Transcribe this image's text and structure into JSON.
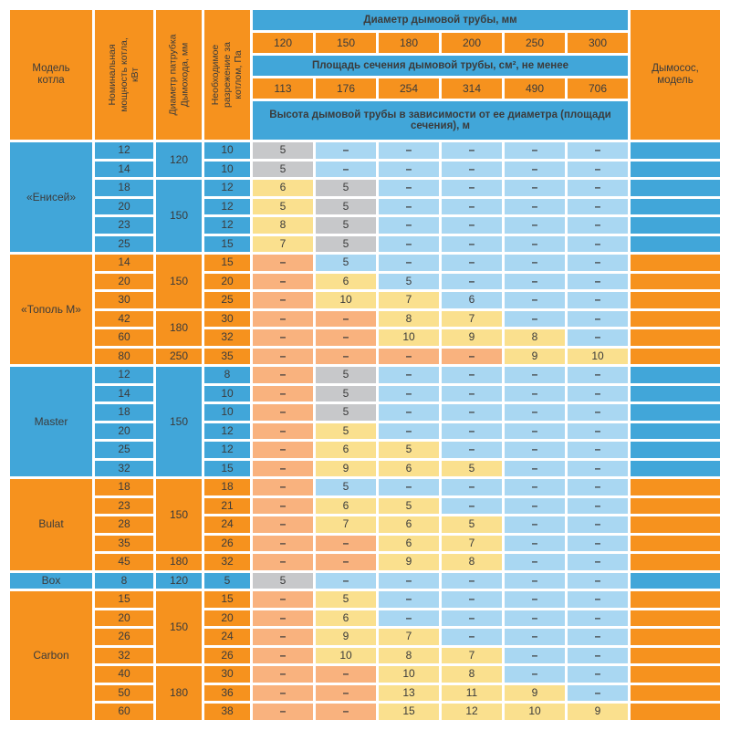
{
  "colors": {
    "orange": "#F6921E",
    "blue": "#41A6D9",
    "light_blue": "#A9D7F2",
    "salmon": "#F9B27E",
    "yellow": "#FAE08E",
    "gray": "#C7C8CA",
    "text": "#3B3B3B",
    "background": "#FFFFFF"
  },
  "chart_data": {
    "type": "table",
    "header": {
      "corner": "Модель котла",
      "rotated": [
        "Номинальная мощность котла, кВт",
        "Диаметр патрубка Дымохода, мм",
        "Необходимое разрежение за котлом, Па"
      ],
      "diameter_band": "Диаметр дымовой трубы, мм",
      "diameters": [
        "120",
        "150",
        "180",
        "200",
        "250",
        "300"
      ],
      "area_band": "Площадь сечения дымовой трубы, см², не менее",
      "areas": [
        "113",
        "176",
        "254",
        "314",
        "490",
        "706"
      ],
      "height_band": "Высота дымовой трубы в зависимости от ее диаметра (площади сечения), м",
      "exhauster": "Дымосос, модель"
    },
    "cell_color_legend": {
      "g": "gray",
      "y": "yellow",
      "b": "light_blue",
      "s": "salmon"
    },
    "sections": [
      {
        "model": "«Енисей»",
        "theme": "blue",
        "pipes": [
          {
            "value": "120",
            "span": 2
          },
          {
            "value": "150",
            "span": 4
          }
        ],
        "rows": [
          {
            "power": "12",
            "pa": "10",
            "heights": [
              [
                "5",
                "g"
              ],
              [
                "–",
                "b"
              ],
              [
                "–",
                "b"
              ],
              [
                "–",
                "b"
              ],
              [
                "–",
                "b"
              ],
              [
                "–",
                "b"
              ]
            ]
          },
          {
            "power": "14",
            "pa": "10",
            "heights": [
              [
                "5",
                "g"
              ],
              [
                "–",
                "b"
              ],
              [
                "–",
                "b"
              ],
              [
                "–",
                "b"
              ],
              [
                "–",
                "b"
              ],
              [
                "–",
                "b"
              ]
            ]
          },
          {
            "power": "18",
            "pa": "12",
            "heights": [
              [
                "6",
                "y"
              ],
              [
                "5",
                "g"
              ],
              [
                "–",
                "b"
              ],
              [
                "–",
                "b"
              ],
              [
                "–",
                "b"
              ],
              [
                "–",
                "b"
              ]
            ]
          },
          {
            "power": "20",
            "pa": "12",
            "heights": [
              [
                "5",
                "y"
              ],
              [
                "5",
                "g"
              ],
              [
                "–",
                "b"
              ],
              [
                "–",
                "b"
              ],
              [
                "–",
                "b"
              ],
              [
                "–",
                "b"
              ]
            ]
          },
          {
            "power": "23",
            "pa": "12",
            "heights": [
              [
                "8",
                "y"
              ],
              [
                "5",
                "g"
              ],
              [
                "–",
                "b"
              ],
              [
                "–",
                "b"
              ],
              [
                "–",
                "b"
              ],
              [
                "–",
                "b"
              ]
            ]
          },
          {
            "power": "25",
            "pa": "15",
            "heights": [
              [
                "7",
                "y"
              ],
              [
                "5",
                "g"
              ],
              [
                "–",
                "b"
              ],
              [
                "–",
                "b"
              ],
              [
                "–",
                "b"
              ],
              [
                "–",
                "b"
              ]
            ]
          }
        ]
      },
      {
        "model": "«Тополь М»",
        "theme": "orange",
        "pipes": [
          {
            "value": "150",
            "span": 3
          },
          {
            "value": "180",
            "span": 2
          },
          {
            "value": "250",
            "span": 1
          }
        ],
        "rows": [
          {
            "power": "14",
            "pa": "15",
            "heights": [
              [
                "–",
                "s"
              ],
              [
                "5",
                "b"
              ],
              [
                "–",
                "b"
              ],
              [
                "–",
                "b"
              ],
              [
                "–",
                "b"
              ],
              [
                "–",
                "b"
              ]
            ]
          },
          {
            "power": "20",
            "pa": "20",
            "heights": [
              [
                "–",
                "s"
              ],
              [
                "6",
                "y"
              ],
              [
                "5",
                "b"
              ],
              [
                "–",
                "b"
              ],
              [
                "–",
                "b"
              ],
              [
                "–",
                "b"
              ]
            ]
          },
          {
            "power": "30",
            "pa": "25",
            "heights": [
              [
                "–",
                "s"
              ],
              [
                "10",
                "y"
              ],
              [
                "7",
                "y"
              ],
              [
                "6",
                "b"
              ],
              [
                "–",
                "b"
              ],
              [
                "–",
                "b"
              ]
            ]
          },
          {
            "power": "42",
            "pa": "30",
            "heights": [
              [
                "–",
                "s"
              ],
              [
                "–",
                "s"
              ],
              [
                "8",
                "y"
              ],
              [
                "7",
                "y"
              ],
              [
                "–",
                "b"
              ],
              [
                "–",
                "b"
              ]
            ]
          },
          {
            "power": "60",
            "pa": "32",
            "heights": [
              [
                "–",
                "s"
              ],
              [
                "–",
                "s"
              ],
              [
                "10",
                "y"
              ],
              [
                "9",
                "y"
              ],
              [
                "8",
                "y"
              ],
              [
                "–",
                "b"
              ]
            ]
          },
          {
            "power": "80",
            "pa": "35",
            "heights": [
              [
                "–",
                "s"
              ],
              [
                "–",
                "s"
              ],
              [
                "–",
                "s"
              ],
              [
                "–",
                "s"
              ],
              [
                "9",
                "y"
              ],
              [
                "10",
                "y"
              ]
            ]
          }
        ]
      },
      {
        "model": "Master",
        "theme": "blue",
        "pipes": [
          {
            "value": "150",
            "span": 6
          }
        ],
        "rows": [
          {
            "power": "12",
            "pa": "8",
            "heights": [
              [
                "–",
                "s"
              ],
              [
                "5",
                "g"
              ],
              [
                "–",
                "b"
              ],
              [
                "–",
                "b"
              ],
              [
                "–",
                "b"
              ],
              [
                "–",
                "b"
              ]
            ]
          },
          {
            "power": "14",
            "pa": "10",
            "heights": [
              [
                "–",
                "s"
              ],
              [
                "5",
                "g"
              ],
              [
                "–",
                "b"
              ],
              [
                "–",
                "b"
              ],
              [
                "–",
                "b"
              ],
              [
                "–",
                "b"
              ]
            ]
          },
          {
            "power": "18",
            "pa": "10",
            "heights": [
              [
                "–",
                "s"
              ],
              [
                "5",
                "g"
              ],
              [
                "–",
                "b"
              ],
              [
                "–",
                "b"
              ],
              [
                "–",
                "b"
              ],
              [
                "–",
                "b"
              ]
            ]
          },
          {
            "power": "20",
            "pa": "12",
            "heights": [
              [
                "–",
                "s"
              ],
              [
                "5",
                "y"
              ],
              [
                "–",
                "b"
              ],
              [
                "–",
                "b"
              ],
              [
                "–",
                "b"
              ],
              [
                "–",
                "b"
              ]
            ]
          },
          {
            "power": "25",
            "pa": "12",
            "heights": [
              [
                "–",
                "s"
              ],
              [
                "6",
                "y"
              ],
              [
                "5",
                "y"
              ],
              [
                "–",
                "b"
              ],
              [
                "–",
                "b"
              ],
              [
                "–",
                "b"
              ]
            ]
          },
          {
            "power": "32",
            "pa": "15",
            "heights": [
              [
                "–",
                "s"
              ],
              [
                "9",
                "y"
              ],
              [
                "6",
                "y"
              ],
              [
                "5",
                "y"
              ],
              [
                "–",
                "b"
              ],
              [
                "–",
                "b"
              ]
            ]
          }
        ]
      },
      {
        "model": "Bulat",
        "theme": "orange",
        "pipes": [
          {
            "value": "150",
            "span": 4
          },
          {
            "value": "180",
            "span": 1
          }
        ],
        "rows": [
          {
            "power": "18",
            "pa": "18",
            "heights": [
              [
                "–",
                "s"
              ],
              [
                "5",
                "b"
              ],
              [
                "–",
                "b"
              ],
              [
                "–",
                "b"
              ],
              [
                "–",
                "b"
              ],
              [
                "–",
                "b"
              ]
            ]
          },
          {
            "power": "23",
            "pa": "21",
            "heights": [
              [
                "–",
                "s"
              ],
              [
                "6",
                "y"
              ],
              [
                "5",
                "y"
              ],
              [
                "–",
                "b"
              ],
              [
                "–",
                "b"
              ],
              [
                "–",
                "b"
              ]
            ]
          },
          {
            "power": "28",
            "pa": "24",
            "heights": [
              [
                "–",
                "s"
              ],
              [
                "7",
                "y"
              ],
              [
                "6",
                "y"
              ],
              [
                "5",
                "y"
              ],
              [
                "–",
                "b"
              ],
              [
                "–",
                "b"
              ]
            ]
          },
          {
            "power": "35",
            "pa": "26",
            "heights": [
              [
                "–",
                "s"
              ],
              [
                "–",
                "s"
              ],
              [
                "6",
                "y"
              ],
              [
                "7",
                "y"
              ],
              [
                "–",
                "b"
              ],
              [
                "–",
                "b"
              ]
            ]
          },
          {
            "power": "45",
            "pa": "32",
            "heights": [
              [
                "–",
                "s"
              ],
              [
                "–",
                "s"
              ],
              [
                "9",
                "y"
              ],
              [
                "8",
                "y"
              ],
              [
                "–",
                "b"
              ],
              [
                "–",
                "b"
              ]
            ]
          }
        ]
      },
      {
        "model": "Box",
        "theme": "blue",
        "pipes": [
          {
            "value": "120",
            "span": 1
          }
        ],
        "rows": [
          {
            "power": "8",
            "pa": "5",
            "heights": [
              [
                "5",
                "g"
              ],
              [
                "–",
                "b"
              ],
              [
                "–",
                "b"
              ],
              [
                "–",
                "b"
              ],
              [
                "–",
                "b"
              ],
              [
                "–",
                "b"
              ]
            ]
          }
        ]
      },
      {
        "model": "Carbon",
        "theme": "orange",
        "pipes": [
          {
            "value": "150",
            "span": 4
          },
          {
            "value": "180",
            "span": 3
          }
        ],
        "rows": [
          {
            "power": "15",
            "pa": "15",
            "heights": [
              [
                "–",
                "s"
              ],
              [
                "5",
                "y"
              ],
              [
                "–",
                "b"
              ],
              [
                "–",
                "b"
              ],
              [
                "–",
                "b"
              ],
              [
                "–",
                "b"
              ]
            ]
          },
          {
            "power": "20",
            "pa": "20",
            "heights": [
              [
                "–",
                "s"
              ],
              [
                "6",
                "y"
              ],
              [
                "–",
                "b"
              ],
              [
                "–",
                "b"
              ],
              [
                "–",
                "b"
              ],
              [
                "–",
                "b"
              ]
            ]
          },
          {
            "power": "26",
            "pa": "24",
            "heights": [
              [
                "–",
                "s"
              ],
              [
                "9",
                "y"
              ],
              [
                "7",
                "y"
              ],
              [
                "–",
                "b"
              ],
              [
                "–",
                "b"
              ],
              [
                "–",
                "b"
              ]
            ]
          },
          {
            "power": "32",
            "pa": "26",
            "heights": [
              [
                "–",
                "s"
              ],
              [
                "10",
                "y"
              ],
              [
                "8",
                "y"
              ],
              [
                "7",
                "y"
              ],
              [
                "–",
                "b"
              ],
              [
                "–",
                "b"
              ]
            ]
          },
          {
            "power": "40",
            "pa": "30",
            "heights": [
              [
                "–",
                "s"
              ],
              [
                "–",
                "s"
              ],
              [
                "10",
                "y"
              ],
              [
                "8",
                "y"
              ],
              [
                "–",
                "b"
              ],
              [
                "–",
                "b"
              ]
            ]
          },
          {
            "power": "50",
            "pa": "36",
            "heights": [
              [
                "–",
                "s"
              ],
              [
                "–",
                "s"
              ],
              [
                "13",
                "y"
              ],
              [
                "11",
                "y"
              ],
              [
                "9",
                "y"
              ],
              [
                "–",
                "b"
              ]
            ]
          },
          {
            "power": "60",
            "pa": "38",
            "heights": [
              [
                "–",
                "s"
              ],
              [
                "–",
                "s"
              ],
              [
                "15",
                "y"
              ],
              [
                "12",
                "y"
              ],
              [
                "10",
                "y"
              ],
              [
                "9",
                "y"
              ]
            ]
          }
        ]
      }
    ]
  }
}
